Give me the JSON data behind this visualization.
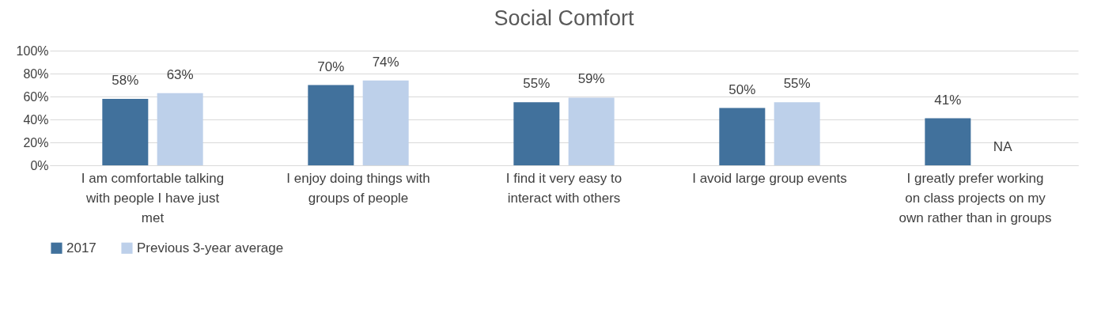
{
  "chart_data": {
    "type": "bar",
    "title": "Social Comfort",
    "categories": [
      "I am comfortable talking with people I have just met",
      "I enjoy doing things with groups of people",
      "I find it very easy to interact with others",
      "I avoid large group events",
      "I greatly prefer working on class projects on my own rather than in groups"
    ],
    "series": [
      {
        "name": "2017",
        "color": "#41719c",
        "values": [
          58,
          70,
          55,
          50,
          41
        ],
        "value_labels": [
          "58%",
          "70%",
          "55%",
          "50%",
          "41%"
        ]
      },
      {
        "name": "Previous 3-year average",
        "color": "#bdd0ea",
        "values": [
          63,
          74,
          59,
          55,
          null
        ],
        "value_labels": [
          "63%",
          "74%",
          "59%",
          "55%",
          "NA"
        ]
      }
    ],
    "ylim": [
      0,
      100
    ],
    "yticks": [
      {
        "value": 0,
        "label": "0%"
      },
      {
        "value": 20,
        "label": "20%"
      },
      {
        "value": 40,
        "label": "40%"
      },
      {
        "value": 60,
        "label": "60%"
      },
      {
        "value": 80,
        "label": "80%"
      },
      {
        "value": 100,
        "label": "100%"
      }
    ],
    "grid": "y",
    "legend": "bottom"
  }
}
